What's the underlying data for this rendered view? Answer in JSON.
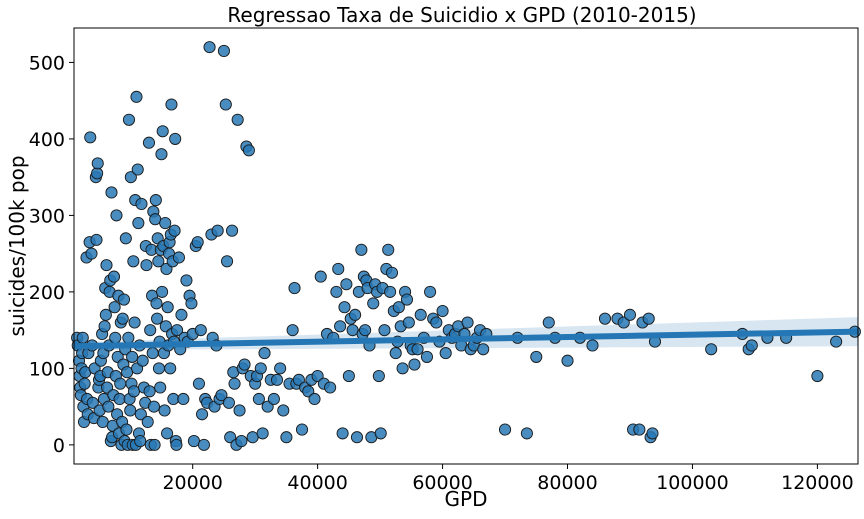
{
  "chart_data": {
    "type": "scatter",
    "title": "Regressao Taxa de Suicidio x GPD (2010-2015)",
    "xlabel": "GPD",
    "ylabel": "suicides/100k pop",
    "xlim": [
      1000,
      126500
    ],
    "ylim": [
      -25,
      545
    ],
    "xticks": [
      20000,
      40000,
      60000,
      80000,
      100000,
      120000
    ],
    "yticks": [
      0,
      100,
      200,
      300,
      400,
      500
    ],
    "grid": false,
    "legend": false,
    "point_color": "#2878b5",
    "line_color": "#2477b4",
    "regression": {
      "x": [
        1000,
        126500
      ],
      "y": [
        129,
        148
      ],
      "ci_lower": [
        124,
        129
      ],
      "ci_upper": [
        134,
        167
      ]
    },
    "points": [
      [
        1500,
        140
      ],
      [
        1600,
        130
      ],
      [
        1800,
        110
      ],
      [
        1900,
        90
      ],
      [
        2000,
        75
      ],
      [
        2100,
        65
      ],
      [
        2200,
        100
      ],
      [
        2300,
        120
      ],
      [
        2400,
        140
      ],
      [
        2500,
        50
      ],
      [
        2600,
        30
      ],
      [
        2700,
        80
      ],
      [
        2800,
        95
      ],
      [
        3000,
        245
      ],
      [
        3100,
        60
      ],
      [
        3200,
        40
      ],
      [
        3300,
        120
      ],
      [
        3500,
        265
      ],
      [
        3600,
        402
      ],
      [
        3800,
        250
      ],
      [
        3900,
        130
      ],
      [
        4000,
        55
      ],
      [
        4200,
        35
      ],
      [
        4300,
        100
      ],
      [
        4500,
        350
      ],
      [
        4600,
        268
      ],
      [
        4700,
        355
      ],
      [
        4800,
        368
      ],
      [
        4900,
        75
      ],
      [
        5000,
        85
      ],
      [
        5100,
        45
      ],
      [
        5200,
        90
      ],
      [
        5300,
        110
      ],
      [
        5500,
        145
      ],
      [
        5600,
        30
      ],
      [
        5700,
        120
      ],
      [
        5800,
        60
      ],
      [
        5900,
        155
      ],
      [
        6000,
        205
      ],
      [
        6100,
        170
      ],
      [
        6200,
        235
      ],
      [
        6300,
        75
      ],
      [
        6400,
        95
      ],
      [
        6500,
        50
      ],
      [
        6600,
        130
      ],
      [
        6700,
        200
      ],
      [
        6800,
        215
      ],
      [
        6900,
        5
      ],
      [
        7000,
        330
      ],
      [
        7100,
        10
      ],
      [
        7200,
        25
      ],
      [
        7300,
        65
      ],
      [
        7400,
        220
      ],
      [
        7500,
        180
      ],
      [
        7600,
        140
      ],
      [
        7700,
        90
      ],
      [
        7800,
        300
      ],
      [
        7900,
        40
      ],
      [
        8000,
        115
      ],
      [
        8100,
        195
      ],
      [
        8200,
        15
      ],
      [
        8300,
        60
      ],
      [
        8400,
        80
      ],
      [
        8500,
        160
      ],
      [
        8600,
        0
      ],
      [
        8700,
        30
      ],
      [
        8800,
        165
      ],
      [
        8900,
        105
      ],
      [
        9000,
        190
      ],
      [
        9100,
        5
      ],
      [
        9200,
        125
      ],
      [
        9300,
        270
      ],
      [
        9400,
        20
      ],
      [
        9500,
        95
      ],
      [
        9600,
        0
      ],
      [
        9700,
        140
      ],
      [
        9800,
        425
      ],
      [
        9900,
        60
      ],
      [
        10000,
        45
      ],
      [
        10100,
        350
      ],
      [
        10200,
        80
      ],
      [
        10300,
        115
      ],
      [
        10400,
        0
      ],
      [
        10500,
        240
      ],
      [
        10600,
        70
      ],
      [
        10700,
        160
      ],
      [
        10800,
        320
      ],
      [
        10900,
        0
      ],
      [
        11000,
        455
      ],
      [
        11100,
        100
      ],
      [
        11200,
        360
      ],
      [
        11300,
        290
      ],
      [
        11400,
        15
      ],
      [
        11500,
        130
      ],
      [
        11600,
        5
      ],
      [
        11700,
        40
      ],
      [
        11800,
        315
      ],
      [
        12000,
        110
      ],
      [
        12200,
        75
      ],
      [
        12400,
        55
      ],
      [
        12500,
        260
      ],
      [
        12600,
        235
      ],
      [
        12800,
        30
      ],
      [
        13000,
        395
      ],
      [
        13100,
        70
      ],
      [
        13200,
        150
      ],
      [
        13300,
        0
      ],
      [
        13400,
        255
      ],
      [
        13500,
        195
      ],
      [
        13600,
        120
      ],
      [
        13700,
        305
      ],
      [
        13800,
        50
      ],
      [
        13900,
        0
      ],
      [
        14000,
        295
      ],
      [
        14100,
        320
      ],
      [
        14200,
        185
      ],
      [
        14300,
        165
      ],
      [
        14400,
        270
      ],
      [
        14500,
        240
      ],
      [
        14600,
        100
      ],
      [
        14700,
        135
      ],
      [
        14800,
        75
      ],
      [
        14900,
        255
      ],
      [
        15000,
        380
      ],
      [
        15100,
        200
      ],
      [
        15200,
        410
      ],
      [
        15300,
        260
      ],
      [
        15400,
        120
      ],
      [
        15500,
        45
      ],
      [
        15600,
        290
      ],
      [
        15700,
        155
      ],
      [
        15800,
        230
      ],
      [
        15900,
        15
      ],
      [
        16000,
        180
      ],
      [
        16100,
        130
      ],
      [
        16200,
        250
      ],
      [
        16300,
        265
      ],
      [
        16400,
        100
      ],
      [
        16500,
        275
      ],
      [
        16600,
        445
      ],
      [
        16700,
        145
      ],
      [
        16800,
        240
      ],
      [
        16900,
        60
      ],
      [
        17000,
        135
      ],
      [
        17100,
        280
      ],
      [
        17200,
        400
      ],
      [
        17300,
        5
      ],
      [
        17400,
        0
      ],
      [
        17500,
        150
      ],
      [
        17800,
        245
      ],
      [
        18000,
        125
      ],
      [
        18200,
        170
      ],
      [
        18500,
        60
      ],
      [
        18700,
        140
      ],
      [
        19000,
        215
      ],
      [
        19200,
        135
      ],
      [
        19500,
        195
      ],
      [
        19800,
        185
      ],
      [
        20000,
        145
      ],
      [
        20200,
        5
      ],
      [
        20500,
        260
      ],
      [
        20800,
        265
      ],
      [
        21000,
        80
      ],
      [
        21300,
        150
      ],
      [
        21500,
        40
      ],
      [
        21800,
        0
      ],
      [
        22000,
        60
      ],
      [
        22300,
        55
      ],
      [
        22700,
        520
      ],
      [
        23000,
        275
      ],
      [
        23200,
        140
      ],
      [
        23500,
        50
      ],
      [
        23800,
        130
      ],
      [
        24000,
        280
      ],
      [
        24300,
        60
      ],
      [
        24600,
        65
      ],
      [
        25000,
        515
      ],
      [
        25300,
        445
      ],
      [
        25500,
        240
      ],
      [
        25800,
        55
      ],
      [
        26000,
        10
      ],
      [
        26300,
        280
      ],
      [
        26500,
        95
      ],
      [
        26700,
        80
      ],
      [
        27000,
        0
      ],
      [
        27200,
        425
      ],
      [
        27500,
        45
      ],
      [
        27800,
        5
      ],
      [
        28000,
        100
      ],
      [
        28300,
        105
      ],
      [
        28600,
        390
      ],
      [
        29000,
        385
      ],
      [
        29300,
        90
      ],
      [
        29600,
        10
      ],
      [
        30000,
        80
      ],
      [
        30300,
        90
      ],
      [
        30600,
        60
      ],
      [
        30900,
        100
      ],
      [
        31200,
        15
      ],
      [
        31500,
        120
      ],
      [
        32000,
        50
      ],
      [
        32500,
        85
      ],
      [
        33000,
        60
      ],
      [
        33500,
        85
      ],
      [
        34000,
        100
      ],
      [
        34500,
        45
      ],
      [
        35000,
        10
      ],
      [
        35500,
        80
      ],
      [
        36000,
        150
      ],
      [
        36300,
        205
      ],
      [
        36600,
        80
      ],
      [
        37000,
        85
      ],
      [
        37500,
        20
      ],
      [
        38000,
        75
      ],
      [
        38500,
        70
      ],
      [
        39000,
        85
      ],
      [
        39500,
        60
      ],
      [
        40000,
        90
      ],
      [
        40500,
        220
      ],
      [
        41000,
        80
      ],
      [
        41500,
        145
      ],
      [
        42000,
        75
      ],
      [
        42500,
        140
      ],
      [
        43000,
        200
      ],
      [
        43300,
        230
      ],
      [
        43600,
        155
      ],
      [
        44000,
        15
      ],
      [
        44300,
        180
      ],
      [
        44600,
        210
      ],
      [
        45000,
        90
      ],
      [
        45300,
        165
      ],
      [
        45600,
        150
      ],
      [
        46000,
        170
      ],
      [
        46300,
        10
      ],
      [
        46600,
        200
      ],
      [
        47000,
        255
      ],
      [
        47200,
        145
      ],
      [
        47400,
        220
      ],
      [
        47600,
        150
      ],
      [
        47800,
        215
      ],
      [
        48000,
        205
      ],
      [
        48300,
        130
      ],
      [
        48600,
        10
      ],
      [
        48900,
        185
      ],
      [
        49200,
        210
      ],
      [
        49500,
        200
      ],
      [
        49800,
        90
      ],
      [
        50100,
        15
      ],
      [
        50400,
        205
      ],
      [
        50700,
        150
      ],
      [
        51000,
        230
      ],
      [
        51300,
        255
      ],
      [
        51600,
        200
      ],
      [
        51900,
        225
      ],
      [
        52200,
        175
      ],
      [
        52500,
        120
      ],
      [
        52800,
        135
      ],
      [
        53000,
        180
      ],
      [
        53300,
        155
      ],
      [
        53600,
        100
      ],
      [
        54000,
        200
      ],
      [
        54300,
        190
      ],
      [
        54600,
        160
      ],
      [
        54900,
        130
      ],
      [
        55200,
        125
      ],
      [
        55500,
        105
      ],
      [
        56000,
        125
      ],
      [
        56500,
        170
      ],
      [
        57000,
        140
      ],
      [
        57500,
        115
      ],
      [
        58000,
        200
      ],
      [
        58500,
        165
      ],
      [
        59000,
        160
      ],
      [
        59500,
        135
      ],
      [
        60000,
        175
      ],
      [
        60500,
        120
      ],
      [
        61000,
        150
      ],
      [
        61500,
        140
      ],
      [
        62000,
        145
      ],
      [
        62500,
        155
      ],
      [
        63000,
        130
      ],
      [
        63500,
        145
      ],
      [
        64000,
        160
      ],
      [
        64500,
        125
      ],
      [
        65000,
        130
      ],
      [
        65500,
        140
      ],
      [
        66000,
        150
      ],
      [
        66500,
        125
      ],
      [
        67000,
        145
      ],
      [
        70000,
        20
      ],
      [
        72000,
        140
      ],
      [
        73500,
        15
      ],
      [
        75000,
        115
      ],
      [
        77000,
        160
      ],
      [
        78000,
        140
      ],
      [
        80000,
        110
      ],
      [
        82000,
        140
      ],
      [
        84000,
        130
      ],
      [
        86000,
        165
      ],
      [
        88000,
        165
      ],
      [
        89000,
        160
      ],
      [
        90000,
        170
      ],
      [
        90500,
        20
      ],
      [
        91500,
        20
      ],
      [
        92000,
        160
      ],
      [
        93000,
        165
      ],
      [
        93300,
        10
      ],
      [
        93600,
        15
      ],
      [
        94000,
        135
      ],
      [
        103000,
        125
      ],
      [
        108000,
        145
      ],
      [
        109000,
        125
      ],
      [
        109500,
        130
      ],
      [
        112000,
        140
      ],
      [
        115000,
        140
      ],
      [
        120000,
        90
      ],
      [
        123000,
        135
      ],
      [
        126000,
        148
      ]
    ]
  }
}
